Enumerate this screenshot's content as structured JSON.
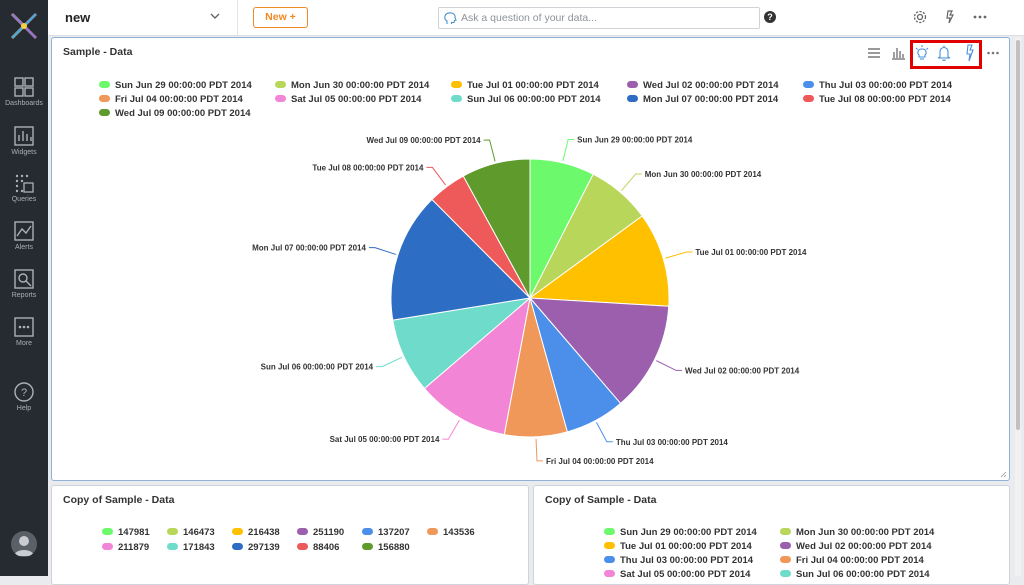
{
  "sidebar": {
    "items": [
      {
        "label": "Dashboards",
        "icon": "dashboards-icon"
      },
      {
        "label": "Widgets",
        "icon": "widgets-icon"
      },
      {
        "label": "Queries",
        "icon": "queries-icon"
      },
      {
        "label": "Alerts",
        "icon": "alerts-icon"
      },
      {
        "label": "Reports",
        "icon": "reports-icon"
      },
      {
        "label": "More",
        "icon": "more-icon"
      },
      {
        "label": "Help",
        "icon": "help-icon"
      }
    ]
  },
  "header": {
    "dashboard_name": "new",
    "new_button": "New +",
    "ask_placeholder": "Ask a question of your data...",
    "help_glyph": "?"
  },
  "main_widget": {
    "title": "Sample - Data",
    "highlighted_tools": [
      "insight-bulb-icon",
      "alert-bell-icon",
      "drill-icon"
    ],
    "legend": [
      "Sun Jun 29 00:00:00 PDT 2014",
      "Mon Jun 30 00:00:00 PDT 2014",
      "Tue Jul 01 00:00:00 PDT 2014",
      "Wed Jul 02 00:00:00 PDT 2014",
      "Thu Jul 03 00:00:00 PDT 2014",
      "Fri Jul 04 00:00:00 PDT 2014",
      "Sat Jul 05 00:00:00 PDT 2014",
      "Sun Jul 06 00:00:00 PDT 2014",
      "Mon Jul 07 00:00:00 PDT 2014",
      "Tue Jul 08 00:00:00 PDT 2014",
      "Wed Jul 09 00:00:00 PDT 2014"
    ]
  },
  "chart_data": {
    "type": "pie",
    "categories": [
      "Sun Jun 29 00:00:00 PDT 2014",
      "Mon Jun 30 00:00:00 PDT 2014",
      "Tue Jul 01 00:00:00 PDT 2014",
      "Wed Jul 02 00:00:00 PDT 2014",
      "Thu Jul 03 00:00:00 PDT 2014",
      "Fri Jul 04 00:00:00 PDT 2014",
      "Sat Jul 05 00:00:00 PDT 2014",
      "Sun Jul 06 00:00:00 PDT 2014",
      "Mon Jul 07 00:00:00 PDT 2014",
      "Tue Jul 08 00:00:00 PDT 2014",
      "Wed Jul 09 00:00:00 PDT 2014"
    ],
    "values": [
      147981,
      146473,
      216438,
      251190,
      137207,
      143536,
      211879,
      171843,
      297139,
      88406,
      156880
    ],
    "colors": [
      "#6cfa6c",
      "#b8d65a",
      "#ffc000",
      "#9b5fae",
      "#4c8fea",
      "#f0975a",
      "#f285d6",
      "#6fdccb",
      "#2d6ec4",
      "#ee5a5a",
      "#5f9a2c"
    ],
    "title": "Sample - Data",
    "legend_position": "top"
  },
  "bottom_left": {
    "title": "Copy of Sample - Data",
    "legend": [
      "147981",
      "146473",
      "216438",
      "251190",
      "137207",
      "143536",
      "211879",
      "171843",
      "297139",
      "88406",
      "156880"
    ]
  },
  "bottom_right": {
    "title": "Copy of Sample - Data",
    "legend": [
      "Sun Jun 29 00:00:00 PDT 2014",
      "Mon Jun 30 00:00:00 PDT 2014",
      "Tue Jul 01 00:00:00 PDT 2014",
      "Wed Jul 02 00:00:00 PDT 2014",
      "Thu Jul 03 00:00:00 PDT 2014",
      "Fri Jul 04 00:00:00 PDT 2014",
      "Sat Jul 05 00:00:00 PDT 2014",
      "Sun Jul 06 00:00:00 PDT 2014"
    ]
  }
}
